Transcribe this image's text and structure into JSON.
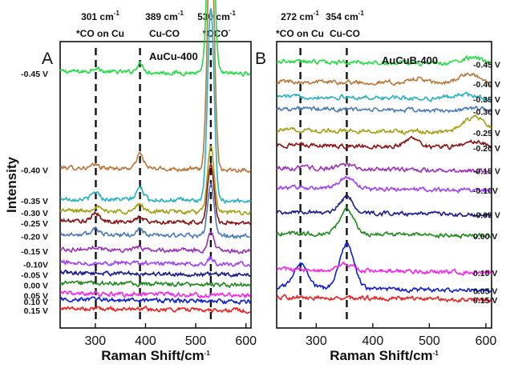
{
  "chart_data": [
    {
      "panel": "A",
      "type": "line",
      "title": "AuCu-400",
      "xlabel": "Raman Shift/cm",
      "xlabel_sup": "-1",
      "ylabel": "Intensity",
      "xlim": [
        230,
        610
      ],
      "xticks": [
        300,
        400,
        500,
        600
      ],
      "grid": false,
      "annotations": [
        {
          "line1": "301 cm",
          "line1_sup": "-1",
          "line2": "*CO on Cu",
          "x": 301
        },
        {
          "line1": "389 cm",
          "line1_sup": "-1",
          "line2": "Cu-CO",
          "x": 389
        },
        {
          "line1": "530 cm",
          "line1_sup": "-1",
          "line2": "*OCO",
          "line2_sup": "-",
          "x": 530
        }
      ],
      "series": [
        {
          "name": "-0.45 V",
          "color": "#22dd44",
          "baseline": 1.6,
          "peaks": [
            [
              301,
              0.03
            ],
            [
              389,
              0.06
            ],
            [
              530,
              1.45
            ]
          ]
        },
        {
          "name": "-0.40 V",
          "color": "#b8763a",
          "baseline": 0.95,
          "peaks": [
            [
              301,
              0.02
            ],
            [
              389,
              0.1
            ],
            [
              530,
              1.75
            ]
          ]
        },
        {
          "name": "-0.35 V",
          "color": "#2ab0c0",
          "baseline": 0.74,
          "peaks": [
            [
              301,
              0.05
            ],
            [
              389,
              0.08
            ],
            [
              530,
              1.3
            ]
          ]
        },
        {
          "name": "-0.30 V",
          "color": "#a4a014",
          "baseline": 0.66,
          "peaks": [
            [
              301,
              0.03
            ],
            [
              389,
              0.05
            ],
            [
              530,
              0.45
            ]
          ]
        },
        {
          "name": "-0.25 V",
          "color": "#8a1212",
          "baseline": 0.59,
          "peaks": [
            [
              301,
              0.06
            ],
            [
              389,
              0.03
            ],
            [
              530,
              0.4
            ]
          ]
        },
        {
          "name": "-0.20 V",
          "color": "#4a7ab8",
          "baseline": 0.5,
          "peaks": [
            [
              301,
              0.05
            ],
            [
              389,
              0.04
            ],
            [
              530,
              0.35
            ]
          ]
        },
        {
          "name": "-0.15 V",
          "color": "#9b30b8",
          "baseline": 0.4,
          "peaks": [
            [
              301,
              0.02
            ],
            [
              389,
              0.02
            ],
            [
              530,
              0.12
            ]
          ]
        },
        {
          "name": "-0.10V",
          "color": "#a040ff",
          "baseline": 0.31,
          "peaks": [
            [
              530,
              0.04
            ]
          ]
        },
        {
          "name": "-0.05 V",
          "color": "#1a1a8a",
          "baseline": 0.24,
          "peaks": []
        },
        {
          "name": "0.00 V",
          "color": "#228822",
          "baseline": 0.17,
          "peaks": []
        },
        {
          "name": "0.05 V",
          "color": "#ff22ee",
          "baseline": 0.1,
          "peaks": []
        },
        {
          "name": "0.10 V",
          "color": "#1020d0",
          "baseline": 0.06,
          "peaks": []
        },
        {
          "name": "0.15 V",
          "color": "#ee2020",
          "baseline": 0.0,
          "peaks": []
        }
      ]
    },
    {
      "panel": "B",
      "type": "line",
      "title": "AuCuB-400",
      "xlabel": "Raman Shift/cm",
      "xlabel_sup": "-1",
      "ylabel": "",
      "xlim": [
        230,
        610
      ],
      "xticks": [
        300,
        400,
        500,
        600
      ],
      "grid": false,
      "annotations": [
        {
          "line1": "272 cm",
          "line1_sup": "-1",
          "line2": "*CO on Cu",
          "x": 272
        },
        {
          "line1": "354 cm",
          "line1_sup": "-1",
          "line2": "Cu-CO",
          "x": 354
        }
      ],
      "series": [
        {
          "name": "-0.45 V",
          "color": "#22dd44",
          "baseline": 1.55,
          "peaks": [
            [
              575,
              0.04
            ]
          ]
        },
        {
          "name": "-0.40 V",
          "color": "#b8763a",
          "baseline": 1.42,
          "peaks": [
            [
              480,
              0.03
            ],
            [
              570,
              0.06
            ]
          ]
        },
        {
          "name": "-0.35 V",
          "color": "#2ab0c0",
          "baseline": 1.32,
          "peaks": [
            [
              560,
              0.03
            ]
          ]
        },
        {
          "name": "-0.30 V",
          "color": "#4a7ab8",
          "baseline": 1.24,
          "peaks": [
            [
              580,
              0.02
            ]
          ]
        },
        {
          "name": "-0.25 V",
          "color": "#a4a014",
          "baseline": 1.1,
          "peaks": [
            [
              580,
              0.1
            ]
          ]
        },
        {
          "name": "-0.20 V",
          "color": "#8a1212",
          "baseline": 1.0,
          "peaks": [
            [
              470,
              0.06
            ],
            [
              580,
              0.04
            ]
          ]
        },
        {
          "name": "-0.15 V",
          "color": "#9b30b8",
          "baseline": 0.85,
          "peaks": [
            [
              354,
              0.03
            ]
          ]
        },
        {
          "name": "-0.10V",
          "color": "#a040ff",
          "baseline": 0.72,
          "peaks": [
            [
              354,
              0.07
            ]
          ]
        },
        {
          "name": "-0.05 V",
          "color": "#1a1a8a",
          "baseline": 0.56,
          "peaks": [
            [
              354,
              0.1
            ]
          ]
        },
        {
          "name": "0.00 V",
          "color": "#228822",
          "baseline": 0.42,
          "peaks": [
            [
              354,
              0.16
            ]
          ]
        },
        {
          "name": "0.05 V",
          "color": "#1020d0",
          "baseline": 0.06,
          "peaks": [
            [
              272,
              0.16
            ],
            [
              354,
              0.3
            ]
          ]
        },
        {
          "name": "0.10 V",
          "color": "#ff22ee",
          "baseline": 0.18,
          "peaks": [
            [
              354,
              0.04
            ]
          ]
        },
        {
          "name": "0.15 V",
          "color": "#ee2020",
          "baseline": 0.0,
          "peaks": []
        }
      ]
    }
  ]
}
